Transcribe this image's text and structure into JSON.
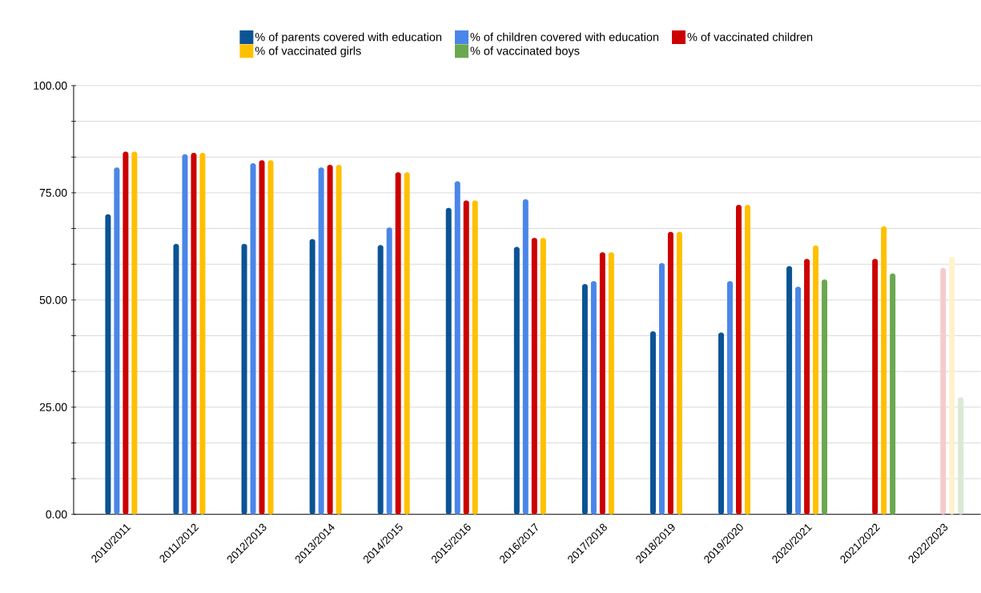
{
  "chart_data": {
    "type": "bar",
    "categories": [
      "2010/2011",
      "2011/2012",
      "2012/2013",
      "2013/2014",
      "2014/2015",
      "2015/2016",
      "2016/2017",
      "2017/2018",
      "2018/2019",
      "2019/2020",
      "2020/2021",
      "2021/2022",
      "2022/2023"
    ],
    "series": [
      {
        "name": "% of parents covered with education",
        "color": "#0b5394",
        "colors": [
          "#0b5394",
          "#0b5394",
          "#0b5394",
          "#0b5394",
          "#0b5394",
          "#0b5394",
          "#0b5394",
          "#0b5394",
          "#0b5394",
          "#0b5394",
          "#0b5394",
          "#0b5394",
          "#0b5394"
        ],
        "values": [
          70.0,
          63.1,
          63.1,
          64.2,
          62.8,
          71.5,
          62.4,
          53.7,
          42.7,
          42.4,
          57.9,
          null,
          null
        ]
      },
      {
        "name": "% of children covered with education",
        "color": "#4a86e8",
        "colors": [
          "#4a86e8",
          "#4a86e8",
          "#4a86e8",
          "#4a86e8",
          "#4a86e8",
          "#4a86e8",
          "#4a86e8",
          "#4a86e8",
          "#4a86e8",
          "#4a86e8",
          "#4a86e8",
          "#4a86e8",
          "#4a86e8"
        ],
        "values": [
          80.9,
          84.0,
          81.9,
          80.9,
          66.9,
          77.7,
          73.5,
          54.4,
          58.6,
          54.4,
          53.1,
          null,
          null
        ]
      },
      {
        "name": "% of vaccinated children",
        "color": "#cc0000",
        "colors": [
          "#cc0000",
          "#cc0000",
          "#cc0000",
          "#cc0000",
          "#cc0000",
          "#cc0000",
          "#cc0000",
          "#cc0000",
          "#cc0000",
          "#cc0000",
          "#cc0000",
          "#cc0000",
          "#f4cccc"
        ],
        "values": [
          84.6,
          84.3,
          82.6,
          81.5,
          79.8,
          73.2,
          64.5,
          61.1,
          65.9,
          72.2,
          59.6,
          59.6,
          57.5
        ]
      },
      {
        "name": "% of vaccinated girls",
        "color": "#ffc000",
        "colors": [
          "#ffc000",
          "#ffc000",
          "#ffc000",
          "#ffc000",
          "#ffc000",
          "#ffc000",
          "#ffc000",
          "#ffc000",
          "#ffc000",
          "#ffc000",
          "#ffc000",
          "#ffc000",
          "#fff2cc"
        ],
        "values": [
          84.6,
          84.3,
          82.6,
          81.5,
          79.8,
          73.2,
          64.5,
          61.1,
          65.9,
          72.2,
          62.7,
          67.2,
          60.0
        ]
      },
      {
        "name": "% of vaccinated boys",
        "color": "#6aa84f",
        "colors": [
          "#6aa84f",
          "#6aa84f",
          "#6aa84f",
          "#6aa84f",
          "#6aa84f",
          "#6aa84f",
          "#6aa84f",
          "#6aa84f",
          "#6aa84f",
          "#6aa84f",
          "#6aa84f",
          "#6aa84f",
          "#d9ead3"
        ],
        "values": [
          null,
          null,
          null,
          null,
          null,
          null,
          null,
          null,
          null,
          null,
          54.8,
          56.2,
          27.3
        ]
      }
    ],
    "ylim": [
      0,
      100
    ],
    "yticks": [
      {
        "value": 0,
        "label": "0.00"
      },
      {
        "value": 8.33,
        "label": null
      },
      {
        "value": 16.67,
        "label": null
      },
      {
        "value": 25,
        "label": "25.00"
      },
      {
        "value": 33.33,
        "label": null
      },
      {
        "value": 41.67,
        "label": null
      },
      {
        "value": 50,
        "label": "50.00"
      },
      {
        "value": 58.33,
        "label": null
      },
      {
        "value": 66.67,
        "label": null
      },
      {
        "value": 75,
        "label": "75.00"
      },
      {
        "value": 83.33,
        "label": null
      },
      {
        "value": 91.67,
        "label": null
      },
      {
        "value": 100,
        "label": "100.00"
      }
    ],
    "grid": "y",
    "legend": "top"
  }
}
